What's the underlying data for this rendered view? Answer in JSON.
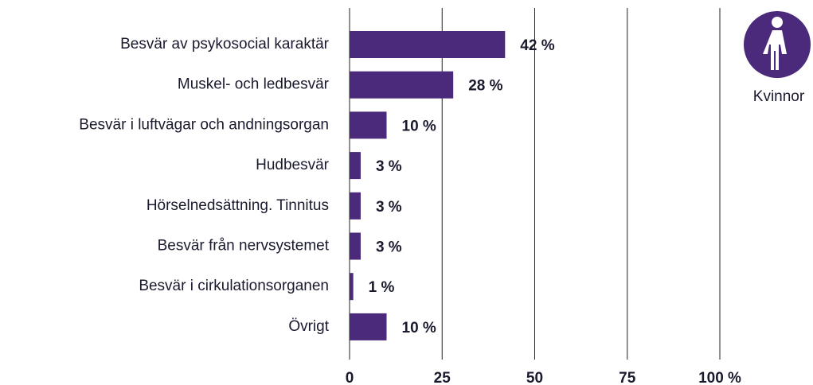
{
  "chart_data": {
    "type": "bar",
    "orientation": "horizontal",
    "categories": [
      "Besvär av psykosocial karaktär",
      "Muskel- och ledbesvär",
      "Besvär i luftvägar och andningsorgan",
      "Hudbesvär",
      "Hörselnedsättning. Tinnitus",
      "Besvär från nervsystemet",
      "Besvär i cirkulationsorganen",
      "Övrigt"
    ],
    "series": [
      {
        "name": "Kvinnor",
        "color": "#4b2a7b",
        "values": [
          42,
          28,
          10,
          3,
          3,
          3,
          1,
          10
        ],
        "value_labels": [
          "42 %",
          "28 %",
          "10 %",
          "3 %",
          "3 %",
          "3 %",
          "1 %",
          "10 %"
        ]
      }
    ],
    "xlim": [
      0,
      100
    ],
    "xticks": [
      0,
      25,
      50,
      75,
      {
        "value": 100,
        "label": "100 %"
      }
    ],
    "grid": true
  }
}
